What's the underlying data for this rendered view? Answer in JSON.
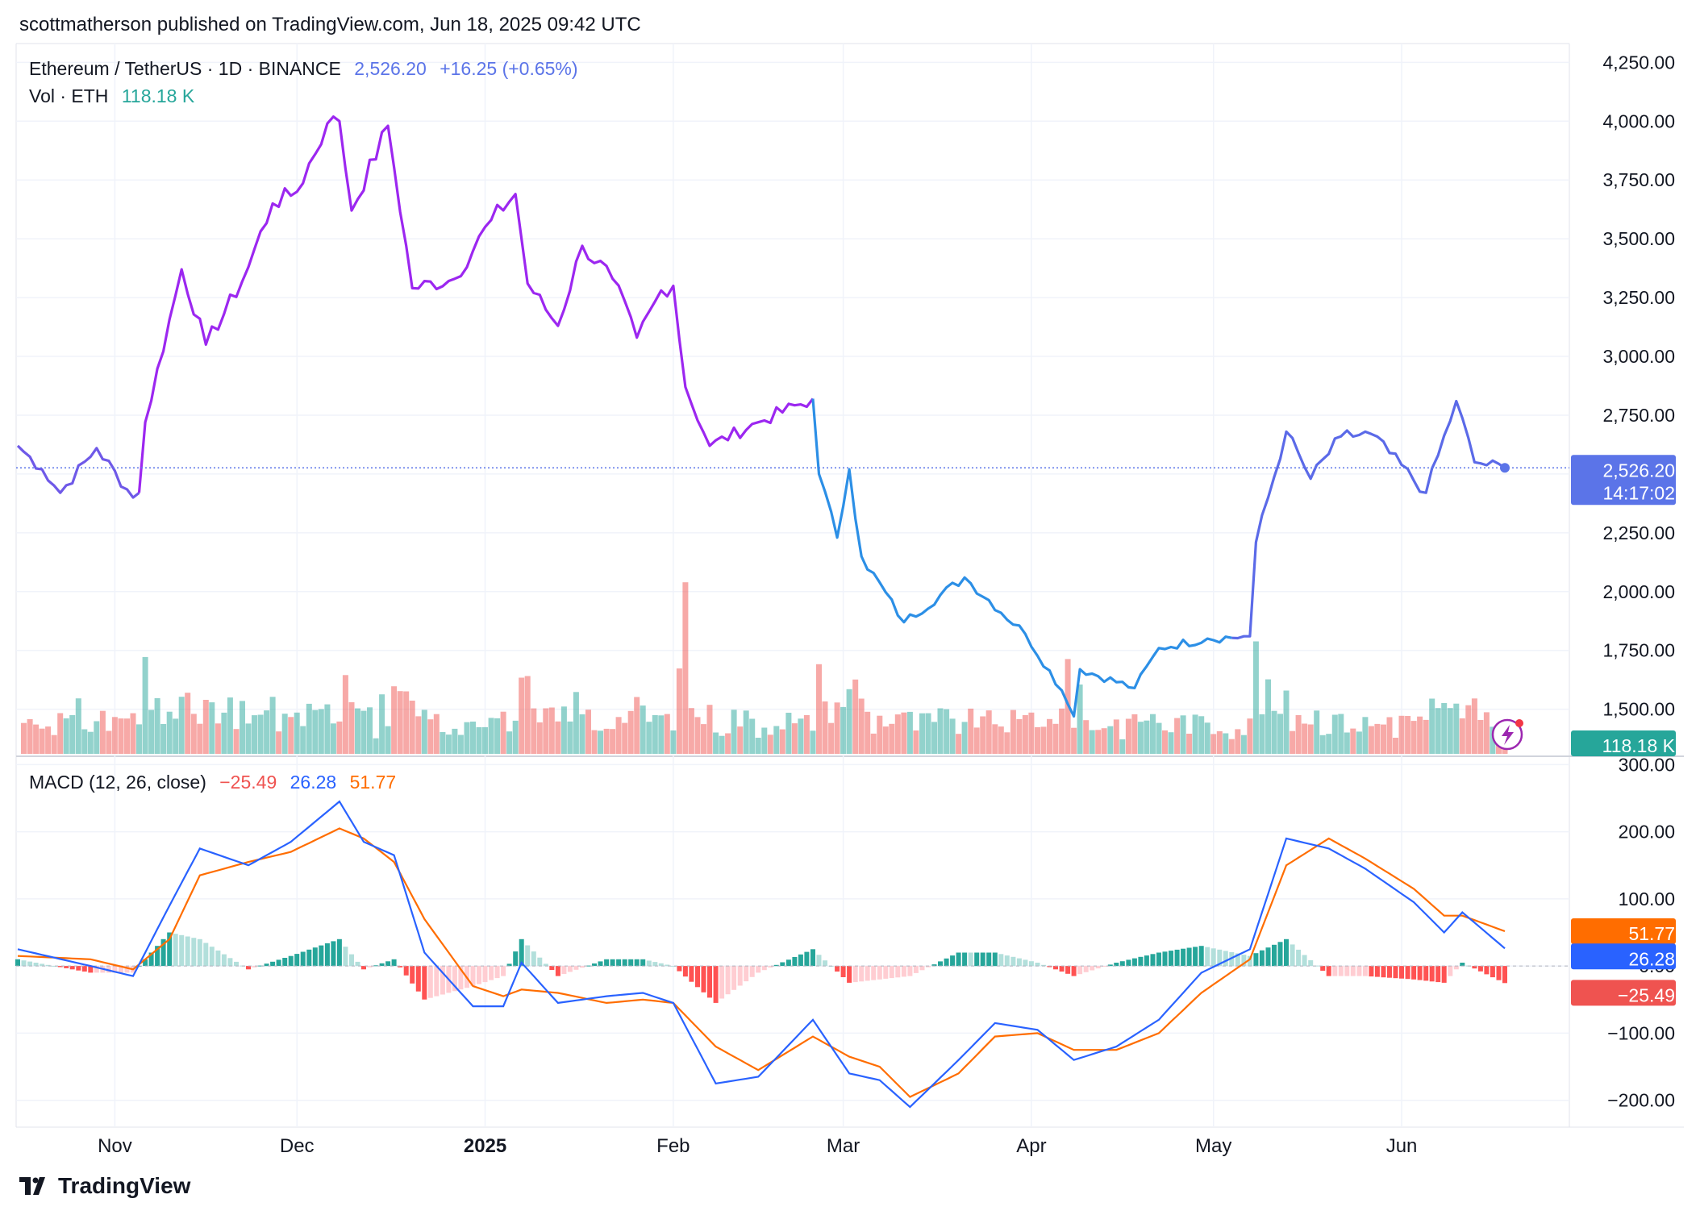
{
  "header": {
    "published": "scottmatherson published on TradingView.com, Jun 18, 2025 09:42 UTC"
  },
  "legend": {
    "symbol": "Ethereum / TetherUS · 1D · BINANCE",
    "price": "2,526.20",
    "change": "+16.25 (+0.65%)",
    "vol_label": "Vol · ETH",
    "vol_value": "118.18 K",
    "macd_label": "MACD (12, 26, close)",
    "macd_hist": "−25.49",
    "macd_line": "26.28",
    "macd_signal": "51.77"
  },
  "badges": {
    "price": "2,526.20",
    "countdown": "14:17:02",
    "volume": "118.18 K",
    "signal": "51.77",
    "macd": "26.28",
    "hist": "−25.49"
  },
  "brand": {
    "name": "TradingView"
  },
  "colors": {
    "purple": "#9c27f0",
    "blue": "#2c8fe6",
    "vol_up": "#26a69a",
    "vol_down": "#ef5350",
    "macd_line": "#2962ff",
    "signal_line": "#ff6d00",
    "price_badge": "#5b74e8"
  },
  "chart_data": [
    {
      "type": "line",
      "title": "Ethereum / TetherUS · 1D · BINANCE",
      "y_ticks": [
        "4,250.00",
        "4,000.00",
        "3,750.00",
        "3,500.00",
        "3,250.00",
        "3,000.00",
        "2,750.00",
        "2,500.00",
        "2,250.00",
        "2,000.00",
        "1,750.00",
        "1,500.00"
      ],
      "ylim": [
        1300,
        4330
      ],
      "x_ticks": [
        "Nov",
        "Dec",
        "2025",
        "Feb",
        "Mar",
        "Apr",
        "May",
        "Jun"
      ],
      "start_date": "2024-10-16",
      "end_date": "2025-06-18",
      "last_price": 2526.2,
      "key_points": [
        {
          "date": "2024-10-16",
          "close": 2620
        },
        {
          "date": "2024-10-20",
          "close": 2520
        },
        {
          "date": "2024-10-23",
          "close": 2420
        },
        {
          "date": "2024-10-29",
          "close": 2610
        },
        {
          "date": "2024-11-04",
          "close": 2400
        },
        {
          "date": "2024-11-05",
          "close": 2420
        },
        {
          "date": "2024-11-06",
          "close": 2720
        },
        {
          "date": "2024-11-12",
          "close": 3370
        },
        {
          "date": "2024-11-16",
          "close": 3050
        },
        {
          "date": "2024-11-22",
          "close": 3320
        },
        {
          "date": "2024-11-27",
          "close": 3650
        },
        {
          "date": "2024-12-01",
          "close": 3700
        },
        {
          "date": "2024-12-06",
          "close": 3990
        },
        {
          "date": "2024-12-08",
          "close": 4000
        },
        {
          "date": "2024-12-10",
          "close": 3620
        },
        {
          "date": "2024-12-16",
          "close": 3980
        },
        {
          "date": "2024-12-20",
          "close": 3290
        },
        {
          "date": "2024-12-27",
          "close": 3330
        },
        {
          "date": "2025-01-02",
          "close": 3580
        },
        {
          "date": "2025-01-06",
          "close": 3690
        },
        {
          "date": "2025-01-08",
          "close": 3310
        },
        {
          "date": "2025-01-13",
          "close": 3130
        },
        {
          "date": "2025-01-17",
          "close": 3470
        },
        {
          "date": "2025-01-22",
          "close": 3330
        },
        {
          "date": "2025-01-26",
          "close": 3080
        },
        {
          "date": "2025-01-30",
          "close": 3280
        },
        {
          "date": "2025-02-01",
          "close": 3300
        },
        {
          "date": "2025-02-03",
          "close": 2870
        },
        {
          "date": "2025-02-07",
          "close": 2620
        },
        {
          "date": "2025-02-15",
          "close": 2720
        },
        {
          "date": "2025-02-24",
          "close": 2820
        },
        {
          "date": "2025-02-25",
          "close": 2500
        },
        {
          "date": "2025-02-28",
          "close": 2230
        },
        {
          "date": "2025-03-02",
          "close": 2520
        },
        {
          "date": "2025-03-04",
          "close": 2150
        },
        {
          "date": "2025-03-11",
          "close": 1870
        },
        {
          "date": "2025-03-21",
          "close": 2060
        },
        {
          "date": "2025-03-31",
          "close": 1820
        },
        {
          "date": "2025-04-06",
          "close": 1580
        },
        {
          "date": "2025-04-08",
          "close": 1470
        },
        {
          "date": "2025-04-09",
          "close": 1670
        },
        {
          "date": "2025-04-18",
          "close": 1590
        },
        {
          "date": "2025-04-22",
          "close": 1760
        },
        {
          "date": "2025-04-30",
          "close": 1800
        },
        {
          "date": "2025-05-07",
          "close": 1810
        },
        {
          "date": "2025-05-08",
          "close": 2210
        },
        {
          "date": "2025-05-13",
          "close": 2680
        },
        {
          "date": "2025-05-17",
          "close": 2480
        },
        {
          "date": "2025-05-22",
          "close": 2660
        },
        {
          "date": "2025-05-27",
          "close": 2670
        },
        {
          "date": "2025-06-05",
          "close": 2420
        },
        {
          "date": "2025-06-10",
          "close": 2810
        },
        {
          "date": "2025-06-13",
          "close": 2550
        },
        {
          "date": "2025-06-18",
          "close": 2526
        }
      ]
    },
    {
      "type": "bar",
      "title": "Vol · ETH",
      "last_value": "118.18 K",
      "notes": "daily volume bars at the bottom of the price pane, green for up days and red for down days; tallest spike around Feb 3, 2025"
    },
    {
      "type": "line",
      "title": "MACD (12, 26, close)",
      "y_ticks": [
        "300.00",
        "200.00",
        "100.00",
        "0.00",
        "−100.00",
        "−200.00"
      ],
      "ylim": [
        -240,
        310
      ],
      "series": [
        {
          "name": "MACD",
          "last": 26.28,
          "points": [
            [
              "2024-10-16",
              25
            ],
            [
              "2024-10-28",
              0
            ],
            [
              "2024-11-04",
              -15
            ],
            [
              "2024-11-10",
              90
            ],
            [
              "2024-11-15",
              175
            ],
            [
              "2024-11-23",
              150
            ],
            [
              "2024-11-30",
              185
            ],
            [
              "2024-12-08",
              245
            ],
            [
              "2024-12-12",
              185
            ],
            [
              "2024-12-17",
              165
            ],
            [
              "2024-12-22",
              20
            ],
            [
              "2024-12-30",
              -60
            ],
            [
              "2025-01-04",
              -60
            ],
            [
              "2025-01-07",
              5
            ],
            [
              "2025-01-13",
              -55
            ],
            [
              "2025-01-21",
              -45
            ],
            [
              "2025-01-27",
              -40
            ],
            [
              "2025-02-01",
              -55
            ],
            [
              "2025-02-08",
              -175
            ],
            [
              "2025-02-15",
              -165
            ],
            [
              "2025-02-24",
              -80
            ],
            [
              "2025-03-02",
              -160
            ],
            [
              "2025-03-07",
              -170
            ],
            [
              "2025-03-12",
              -210
            ],
            [
              "2025-03-20",
              -140
            ],
            [
              "2025-03-26",
              -85
            ],
            [
              "2025-04-02",
              -95
            ],
            [
              "2025-04-08",
              -140
            ],
            [
              "2025-04-15",
              -120
            ],
            [
              "2025-04-22",
              -80
            ],
            [
              "2025-04-29",
              -10
            ],
            [
              "2025-05-07",
              25
            ],
            [
              "2025-05-13",
              190
            ],
            [
              "2025-05-20",
              175
            ],
            [
              "2025-05-26",
              145
            ],
            [
              "2025-06-03",
              95
            ],
            [
              "2025-06-08",
              50
            ],
            [
              "2025-06-11",
              80
            ],
            [
              "2025-06-18",
              26.28
            ]
          ]
        },
        {
          "name": "Signal",
          "last": 51.77,
          "points": [
            [
              "2024-10-16",
              15
            ],
            [
              "2024-10-28",
              10
            ],
            [
              "2024-11-04",
              -5
            ],
            [
              "2024-11-10",
              40
            ],
            [
              "2024-11-15",
              135
            ],
            [
              "2024-11-23",
              155
            ],
            [
              "2024-11-30",
              170
            ],
            [
              "2024-12-08",
              205
            ],
            [
              "2024-12-12",
              190
            ],
            [
              "2024-12-17",
              155
            ],
            [
              "2024-12-22",
              70
            ],
            [
              "2024-12-30",
              -30
            ],
            [
              "2025-01-04",
              -45
            ],
            [
              "2025-01-07",
              -35
            ],
            [
              "2025-01-13",
              -40
            ],
            [
              "2025-01-21",
              -55
            ],
            [
              "2025-01-27",
              -50
            ],
            [
              "2025-02-01",
              -55
            ],
            [
              "2025-02-08",
              -120
            ],
            [
              "2025-02-15",
              -155
            ],
            [
              "2025-02-24",
              -105
            ],
            [
              "2025-03-02",
              -135
            ],
            [
              "2025-03-07",
              -150
            ],
            [
              "2025-03-12",
              -195
            ],
            [
              "2025-03-20",
              -160
            ],
            [
              "2025-03-26",
              -105
            ],
            [
              "2025-04-02",
              -100
            ],
            [
              "2025-04-08",
              -125
            ],
            [
              "2025-04-15",
              -125
            ],
            [
              "2025-04-22",
              -100
            ],
            [
              "2025-04-29",
              -40
            ],
            [
              "2025-05-07",
              10
            ],
            [
              "2025-05-13",
              150
            ],
            [
              "2025-05-20",
              190
            ],
            [
              "2025-05-26",
              160
            ],
            [
              "2025-06-03",
              115
            ],
            [
              "2025-06-08",
              75
            ],
            [
              "2025-06-11",
              75
            ],
            [
              "2025-06-18",
              51.77
            ]
          ]
        }
      ],
      "histogram_last": -25.49
    }
  ]
}
